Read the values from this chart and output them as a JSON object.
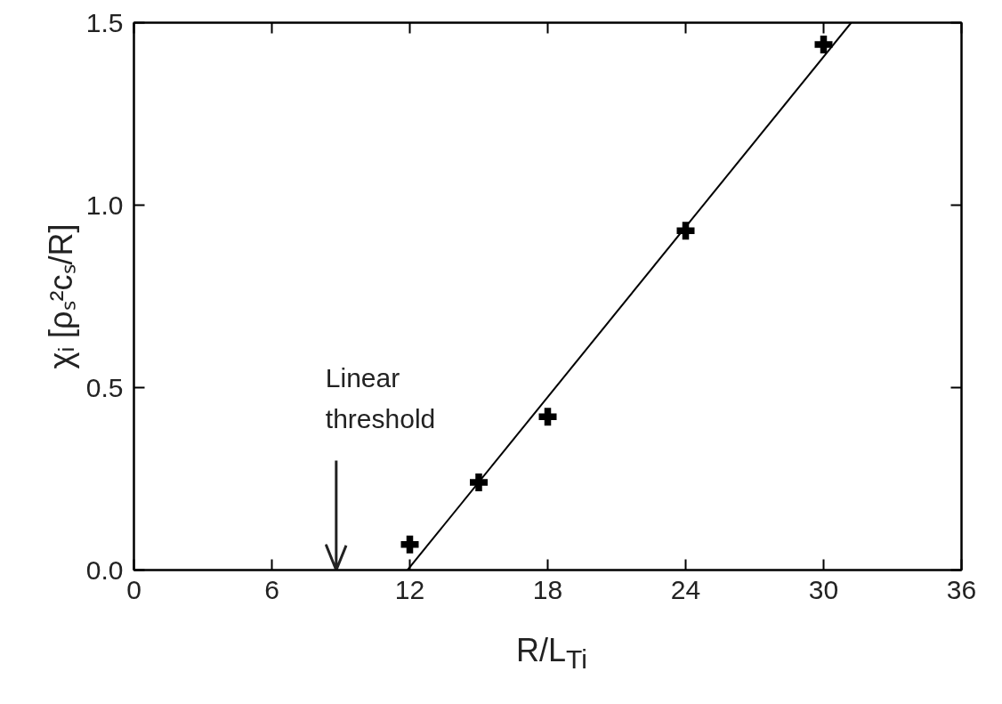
{
  "chart_data": {
    "type": "scatter",
    "xlabel": "R/L$_{Ti}$",
    "ylabel": "χᵢ [ρₛ²cₛ/R]",
    "series": [
      {
        "color": "#000000",
        "marker": "cross",
        "x": [
          12,
          15,
          18,
          24,
          30
        ],
        "values": [
          0.07,
          0.24,
          0.42,
          0.93,
          1.44
        ]
      },
      {
        "type": "line",
        "color": "#000000",
        "marker": "none",
        "x": [
          11.9,
          31.2
        ],
        "values": [
          0,
          1.5
        ]
      }
    ],
    "xlim": [
      0,
      36
    ],
    "ylim": [
      0,
      1.5
    ],
    "xticks": [
      0,
      6,
      12,
      18,
      24,
      30,
      36
    ],
    "yticks": [
      {
        "value": 0,
        "label": "0.0"
      },
      {
        "value": 0.5,
        "label": "0.5"
      },
      {
        "value": 1,
        "label": "1.0"
      },
      {
        "value": 1.5,
        "label": "1.5"
      }
    ],
    "grid": false,
    "ref_lines": [
      {
        "axis": "x",
        "value": 8.8,
        "label": "Linear threshold",
        "color": "#222222"
      }
    ]
  }
}
